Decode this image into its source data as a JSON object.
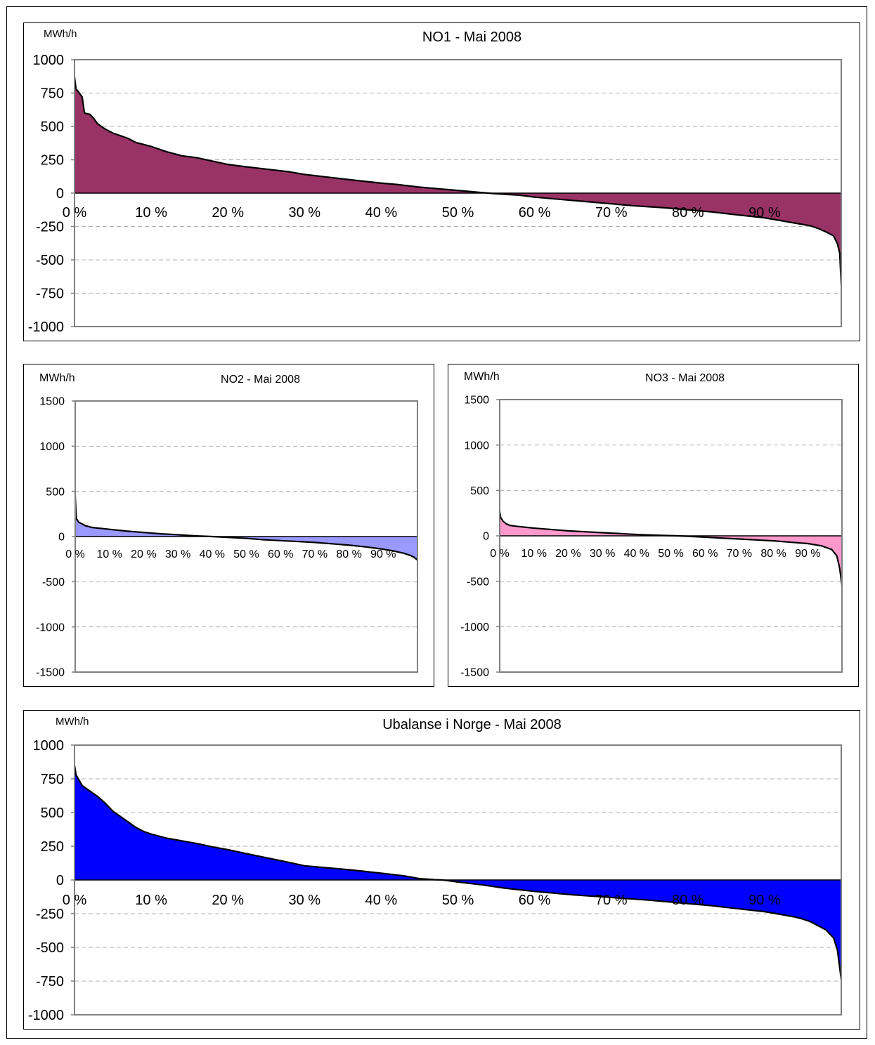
{
  "chart_data": [
    {
      "id": "no1",
      "type": "area",
      "title": "NO1 - Mai 2008",
      "ylabel": "MWh/h",
      "xlabel": "",
      "ylim": [
        -1000,
        1000
      ],
      "yticks": [
        "1000",
        "750",
        "500",
        "250",
        "0",
        "-250",
        "-500",
        "-750",
        "-1000"
      ],
      "ytick_values": [
        1000,
        750,
        500,
        250,
        0,
        -250,
        -500,
        -750,
        -1000
      ],
      "xticks": [
        "0 %",
        "10 %",
        "20 %",
        "30 %",
        "40 %",
        "50 %",
        "60 %",
        "70 %",
        "80 %",
        "90 %"
      ],
      "xtick_values": [
        0,
        10,
        20,
        30,
        40,
        50,
        60,
        70,
        80,
        90
      ],
      "xlim": [
        0,
        100
      ],
      "grid": true,
      "fill_color": "#993366",
      "line_color": "#000000",
      "series": [
        {
          "x": [
            0,
            0.2,
            0.5,
            1,
            1.3,
            2,
            2.5,
            3,
            3.5,
            4,
            5,
            6,
            7,
            8,
            10,
            12,
            14,
            16,
            18,
            20,
            22,
            25,
            28,
            30,
            33,
            36,
            40,
            42,
            45,
            48,
            51,
            53,
            54,
            55,
            58,
            60,
            63,
            66,
            70,
            73,
            77,
            80,
            83,
            86,
            90,
            92,
            94,
            96,
            97,
            98,
            99,
            99.5,
            99.8,
            100
          ],
          "y": [
            870,
            780,
            760,
            720,
            600,
            590,
            560,
            520,
            500,
            480,
            450,
            430,
            410,
            380,
            350,
            310,
            280,
            265,
            240,
            215,
            200,
            180,
            160,
            140,
            120,
            100,
            75,
            65,
            45,
            30,
            15,
            5,
            0,
            -5,
            -15,
            -30,
            -45,
            -60,
            -80,
            -95,
            -110,
            -125,
            -140,
            -160,
            -185,
            -205,
            -225,
            -245,
            -265,
            -290,
            -320,
            -380,
            -450,
            -690
          ]
        }
      ]
    },
    {
      "id": "no2",
      "type": "area",
      "title": "NO2 -  Mai 2008",
      "ylabel": "MWh/h",
      "xlabel": "",
      "ylim": [
        -1500,
        1500
      ],
      "yticks": [
        "1500",
        "1000",
        "500",
        "0",
        "-500",
        "-1000",
        "-1500"
      ],
      "ytick_values": [
        1500,
        1000,
        500,
        0,
        -500,
        -1000,
        -1500
      ],
      "xticks": [
        "0 %",
        "10 %",
        "20 %",
        "30 %",
        "40 %",
        "50 %",
        "60 %",
        "70 %",
        "80 %",
        "90 %"
      ],
      "xtick_values": [
        0,
        10,
        20,
        30,
        40,
        50,
        60,
        70,
        80,
        90
      ],
      "xlim": [
        0,
        100
      ],
      "grid": true,
      "fill_color": "#9999ff",
      "line_color": "#000000",
      "series": [
        {
          "x": [
            0,
            0.3,
            1,
            2,
            3,
            5,
            10,
            15,
            20,
            25,
            30,
            35,
            40,
            45,
            50,
            55,
            60,
            65,
            70,
            75,
            80,
            85,
            90,
            93,
            96,
            98,
            99,
            100
          ],
          "y": [
            450,
            200,
            160,
            140,
            120,
            100,
            80,
            60,
            45,
            30,
            20,
            8,
            0,
            -10,
            -20,
            -35,
            -45,
            -55,
            -65,
            -80,
            -95,
            -115,
            -140,
            -160,
            -185,
            -210,
            -230,
            -260
          ]
        }
      ]
    },
    {
      "id": "no3",
      "type": "area",
      "title": "NO3 - Mai 2008",
      "ylabel": "MWh/h",
      "xlabel": "",
      "ylim": [
        -1500,
        1500
      ],
      "yticks": [
        "1500",
        "1000",
        "500",
        "0",
        "-500",
        "-1000",
        "-1500"
      ],
      "ytick_values": [
        1500,
        1000,
        500,
        0,
        -500,
        -1000,
        -1500
      ],
      "xticks": [
        "0 %",
        "10 %",
        "20 %",
        "30 %",
        "40 %",
        "50 %",
        "60 %",
        "70 %",
        "80 %",
        "90 %"
      ],
      "xtick_values": [
        0,
        10,
        20,
        30,
        40,
        50,
        60,
        70,
        80,
        90
      ],
      "xlim": [
        0,
        100
      ],
      "grid": true,
      "fill_color": "#ff99cc",
      "line_color": "#000000",
      "series": [
        {
          "x": [
            0,
            0.3,
            1,
            2,
            3,
            5,
            10,
            15,
            20,
            25,
            30,
            35,
            40,
            45,
            50,
            52,
            55,
            60,
            65,
            70,
            75,
            80,
            85,
            90,
            94,
            97,
            98.5,
            99.3,
            100
          ],
          "y": [
            270,
            200,
            160,
            130,
            115,
            105,
            85,
            70,
            55,
            45,
            35,
            25,
            15,
            8,
            2,
            0,
            -5,
            -15,
            -25,
            -35,
            -45,
            -55,
            -70,
            -85,
            -110,
            -150,
            -220,
            -350,
            -540
          ]
        }
      ]
    },
    {
      "id": "tot",
      "type": "area",
      "title": "Ubalanse i Norge -  Mai 2008",
      "ylabel": "MWh/h",
      "xlabel": "",
      "ylim": [
        -1000,
        1000
      ],
      "yticks": [
        "1000",
        "750",
        "500",
        "250",
        "0",
        "-250",
        "-500",
        "-750",
        "-1000"
      ],
      "ytick_values": [
        1000,
        750,
        500,
        250,
        0,
        -250,
        -500,
        -750,
        -1000
      ],
      "xticks": [
        "0 %",
        "10 %",
        "20 %",
        "30 %",
        "40 %",
        "50 %",
        "60 %",
        "70 %",
        "80 %",
        "90 %"
      ],
      "xtick_values": [
        0,
        10,
        20,
        30,
        40,
        50,
        60,
        70,
        80,
        90
      ],
      "xlim": [
        0,
        100
      ],
      "grid": true,
      "fill_color": "#0000ff",
      "line_color": "#000000",
      "series": [
        {
          "x": [
            0,
            0.2,
            0.5,
            1,
            2,
            3,
            4,
            5,
            6,
            7,
            8,
            9,
            10,
            12,
            14,
            16,
            18,
            20,
            22,
            25,
            28,
            30,
            33,
            36,
            40,
            43,
            45,
            47,
            48,
            50,
            53,
            56,
            60,
            65,
            70,
            75,
            80,
            83,
            86,
            90,
            92,
            94,
            95,
            96,
            97,
            98,
            99,
            99.5,
            100
          ],
          "y": [
            850,
            780,
            750,
            700,
            660,
            620,
            570,
            510,
            470,
            430,
            390,
            360,
            340,
            310,
            290,
            270,
            245,
            225,
            200,
            165,
            130,
            105,
            90,
            75,
            50,
            30,
            10,
            2,
            0,
            -15,
            -35,
            -60,
            -85,
            -110,
            -130,
            -150,
            -175,
            -190,
            -210,
            -235,
            -255,
            -275,
            -290,
            -310,
            -340,
            -370,
            -430,
            -520,
            -740
          ]
        }
      ]
    }
  ]
}
